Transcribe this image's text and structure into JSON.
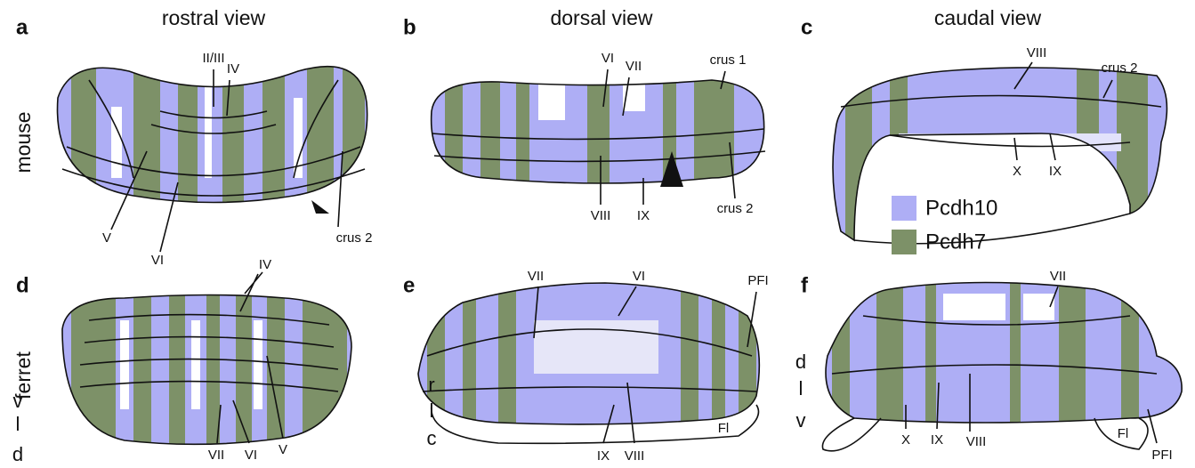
{
  "column_titles": [
    "rostral view",
    "dorsal view",
    "caudal view"
  ],
  "row_labels": [
    "mouse",
    "ferret"
  ],
  "legend": [
    {
      "label": "Pcdh10",
      "color": "#aeaef5"
    },
    {
      "label": "Pcdh7",
      "color": "#7d9168"
    }
  ],
  "panels": [
    {
      "letter": "a",
      "labels": [
        "II/III",
        "IV",
        "V",
        "VI",
        "crus 2"
      ]
    },
    {
      "letter": "b",
      "labels": [
        "VI",
        "VII",
        "crus 1",
        "VIII",
        "IX",
        "crus 2"
      ]
    },
    {
      "letter": "c",
      "labels": [
        "VIII",
        "crus 2",
        "X",
        "IX"
      ]
    },
    {
      "letter": "d",
      "labels": [
        "IV",
        "VII",
        "VI",
        "V"
      ],
      "orientation": [
        "v",
        "l",
        "d"
      ]
    },
    {
      "letter": "e",
      "labels": [
        "VII",
        "VI",
        "PFI",
        "IX",
        "VIII",
        "Fl"
      ],
      "orientation": [
        "r",
        "l",
        "c"
      ]
    },
    {
      "letter": "f",
      "labels": [
        "VII",
        "PFI",
        "X",
        "IX",
        "VIII",
        "Fl"
      ],
      "orientation": [
        "d",
        "l",
        "v"
      ]
    }
  ]
}
